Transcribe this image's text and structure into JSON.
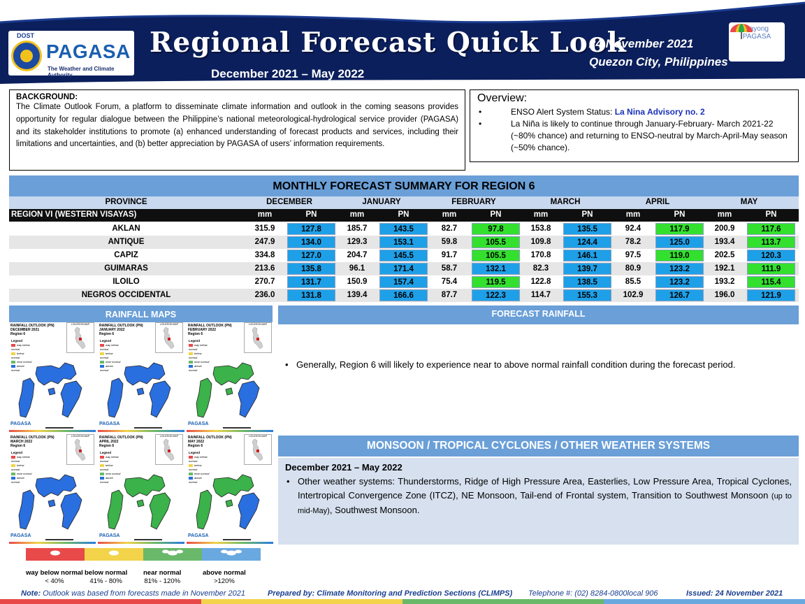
{
  "header": {
    "logo_dost": "DOST",
    "logo_name": "PAGASA",
    "logo_tagline": "The Weather and Climate Authority",
    "title": "Regional Forecast Quick Look",
    "period": "December 2021 – May 2022",
    "date": "24 November  2021",
    "place": "Quezon  City, Philippines",
    "payong_line1": "Payong",
    "payong_line2": "PAGASA"
  },
  "background": {
    "heading": "BACKGROUND:",
    "text": "The Climate Outlook Forum, a platform to disseminate climate information and outlook in the coming seasons provides opportunity for regular dialogue between the Philippine’s national meteorological-hydrological service provider (PAGASA) and its stakeholder institutions to promote (a) enhanced understanding of forecast products and services, including their limitations and uncertainties, and (b) better appreciation by PAGASA of users’ information requirements."
  },
  "overview": {
    "heading": "Overview:",
    "enso_label": "ENSO Alert System Status: ",
    "enso_value": "La Nina Advisory no. 2",
    "point2": "La Niña is likely to continue through January-February- March 2021-22  (~80% chance) and returning to ENSO-neutral by March-April-May season (~50% chance)."
  },
  "table": {
    "title": "MONTHLY FORECAST SUMMARY FOR REGION 6",
    "province_header": "PROVINCE",
    "months": [
      "DECEMBER",
      "JANUARY",
      "FEBRUARY",
      "MARCH",
      "APRIL",
      "MAY"
    ],
    "region_label": "REGION VI (WESTERN VISAYAS)",
    "unit_mm": "mm",
    "unit_pn": "PN",
    "colors": {
      "blue": "#1ea0e8",
      "green": "#33e02e"
    },
    "rows": [
      {
        "province": "AKLAN",
        "mm": [
          "315.9",
          "185.7",
          "82.7",
          "153.8",
          "92.4",
          "200.9"
        ],
        "pn": [
          "127.8",
          "143.5",
          "97.8",
          "135.5",
          "117.9",
          "117.6"
        ],
        "pn_color": [
          "blue",
          "blue",
          "green",
          "blue",
          "green",
          "green"
        ]
      },
      {
        "province": "ANTIQUE",
        "mm": [
          "247.9",
          "129.3",
          "59.8",
          "109.8",
          "78.2",
          "193.4"
        ],
        "pn": [
          "134.0",
          "153.1",
          "105.5",
          "124.4",
          "125.0",
          "113.7"
        ],
        "pn_color": [
          "blue",
          "blue",
          "green",
          "blue",
          "blue",
          "green"
        ]
      },
      {
        "province": "CAPIZ",
        "mm": [
          "334.8",
          "204.7",
          "91.7",
          "170.8",
          "97.5",
          "202.5"
        ],
        "pn": [
          "127.0",
          "145.5",
          "105.5",
          "146.1",
          "119.0",
          "120.3"
        ],
        "pn_color": [
          "blue",
          "blue",
          "green",
          "blue",
          "green",
          "blue"
        ]
      },
      {
        "province": "GUIMARAS",
        "mm": [
          "213.6",
          "96.1",
          "58.7",
          "82.3",
          "80.9",
          "192.1"
        ],
        "pn": [
          "135.8",
          "171.4",
          "132.1",
          "139.7",
          "123.2",
          "111.9"
        ],
        "pn_color": [
          "blue",
          "blue",
          "blue",
          "blue",
          "blue",
          "green"
        ]
      },
      {
        "province": "ILOILO",
        "mm": [
          "270.7",
          "150.9",
          "75.4",
          "122.8",
          "85.5",
          "193.2"
        ],
        "pn": [
          "131.7",
          "157.4",
          "119.5",
          "138.5",
          "123.2",
          "115.4"
        ],
        "pn_color": [
          "blue",
          "blue",
          "green",
          "blue",
          "blue",
          "green"
        ]
      },
      {
        "province": "NEGROS OCCIDENTAL",
        "mm": [
          "236.0",
          "139.4",
          "87.7",
          "114.7",
          "102.9",
          "196.0"
        ],
        "pn": [
          "131.8",
          "166.6",
          "122.3",
          "155.3",
          "126.7",
          "121.9"
        ],
        "pn_color": [
          "blue",
          "blue",
          "blue",
          "blue",
          "blue",
          "blue"
        ]
      }
    ]
  },
  "rainfall_maps": {
    "title": "RAINFALL MAPS",
    "maps": [
      {
        "label": "RAINFALL OUTLOOK (PN)",
        "month": "DECEMBER 2021",
        "region": "Region 6",
        "fill": "#2a6fe0"
      },
      {
        "label": "RAINFALL OUTLOOK (PN)",
        "month": "JANUARY 2022",
        "region": "Region 6",
        "fill": "#2a6fe0"
      },
      {
        "label": "RAINFALL OUTLOOK (PN)",
        "month": "FEBRUARY 2022",
        "region": "Region 6",
        "fill": "#3bb24a"
      },
      {
        "label": "RAINFALL OUTLOOK (PN)",
        "month": "MARCH 2022",
        "region": "Region 6",
        "fill": "#2a6fe0"
      },
      {
        "label": "RAINFALL OUTLOOK (PN)",
        "month": "APRIL 2022",
        "region": "Region 6",
        "fill": "#3bb24a"
      },
      {
        "label": "RAINFALL OUTLOOK (PN)",
        "month": "MAY 2022",
        "region": "Region 6",
        "fill": "#3bb24a"
      }
    ],
    "legend_word": "Legend",
    "location_map": "LOCATION MAP",
    "map_logo": "PAGASA",
    "legend": [
      {
        "name": "way below normal",
        "range": "< 40%",
        "color": "#e84a4a"
      },
      {
        "name": "below normal",
        "range": "41% -  80%",
        "color": "#f2d34a"
      },
      {
        "name": "near normal",
        "range": "81% - 120%",
        "color": "#6ab86a"
      },
      {
        "name": "above normal",
        "range": ">120%",
        "color": "#6aa8e0"
      }
    ]
  },
  "forecast_rainfall": {
    "title": "FORECAST RAINFALL",
    "text": "Generally, Region 6 will likely to experience near to above normal rainfall condition during the forecast period."
  },
  "monsoon": {
    "title": "MONSOON / TROPICAL CYCLONES / OTHER WEATHER SYSTEMS",
    "period": "December 2021 – May 2022",
    "text_before": "Other weather systems: Thunderstorms,  Ridge of High Pressure Area,  Easterlies, Low Pressure Area, Tropical Cyclones, Intertropical Convergence Zone (ITCZ), NE Monsoon, Tail-end of Frontal system, Transition to Southwest Monsoon ",
    "text_small": "(up to mid-May)",
    "text_after": ", Southwest Monsoon."
  },
  "footer": {
    "note_label": "Note:",
    "note_text": " Outlook was based from forecasts made in November 2021",
    "prepared": "Prepared by: Climate Monitoring and Prediction Sections (CLIMPS)",
    "telephone": "Telephone #: (02) 8284-0800local 906",
    "issued": "Issued: 24 November 2021"
  }
}
